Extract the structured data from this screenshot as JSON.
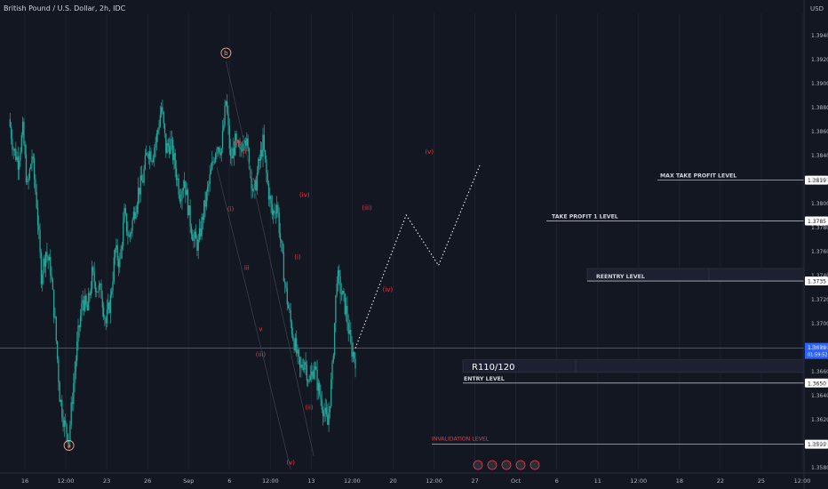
{
  "header": {
    "symbol_title": "British Pound / U.S. Dollar, 2h, IDC"
  },
  "chart_data": {
    "type": "candlestick",
    "currency": "USD",
    "y_ticks": [
      "1.3940",
      "1.3920",
      "1.3900",
      "1.3880",
      "1.3860",
      "1.3840",
      "1.3820",
      "1.3800",
      "1.3780",
      "1.3760",
      "1.3740",
      "1.3720",
      "1.3700",
      "1.3680",
      "1.3660",
      "1.3640",
      "1.3620",
      "1.3600",
      "1.3580"
    ],
    "ylim": [
      1.3578,
      1.3958
    ],
    "x_ticks": [
      "16",
      "12:00",
      "23",
      "26",
      "Sep",
      "6",
      "12:00",
      "13",
      "12:00",
      "20",
      "12:00",
      "27",
      "Oct",
      "6",
      "11",
      "12:00",
      "18",
      "22",
      "25",
      "12:00"
    ],
    "price_path": [
      [
        0,
        1.387
      ],
      [
        1,
        1.3845
      ],
      [
        2,
        1.3835
      ],
      [
        3,
        1.386
      ],
      [
        4,
        1.3812
      ],
      [
        5,
        1.384
      ],
      [
        6,
        1.38
      ],
      [
        7,
        1.374
      ],
      [
        8,
        1.376
      ],
      [
        9,
        1.3745
      ],
      [
        10,
        1.37
      ],
      [
        11,
        1.364
      ],
      [
        12,
        1.3615
      ],
      [
        13,
        1.3605
      ],
      [
        14,
        1.365
      ],
      [
        15,
        1.369
      ],
      [
        16,
        1.372
      ],
      [
        17,
        1.371
      ],
      [
        18,
        1.374
      ],
      [
        19,
        1.373
      ],
      [
        20,
        1.3725
      ],
      [
        21,
        1.37
      ],
      [
        22,
        1.372
      ],
      [
        23,
        1.376
      ],
      [
        24,
        1.375
      ],
      [
        25,
        1.379
      ],
      [
        26,
        1.377
      ],
      [
        27,
        1.379
      ],
      [
        28,
        1.381
      ],
      [
        29,
        1.382
      ],
      [
        30,
        1.3845
      ],
      [
        31,
        1.384
      ],
      [
        32,
        1.3855
      ],
      [
        33,
        1.388
      ],
      [
        34,
        1.3845
      ],
      [
        35,
        1.385
      ],
      [
        36,
        1.383
      ],
      [
        37,
        1.3808
      ],
      [
        38,
        1.382
      ],
      [
        39,
        1.379
      ],
      [
        40,
        1.377
      ],
      [
        41,
        1.3765
      ],
      [
        42,
        1.379
      ],
      [
        43,
        1.381
      ],
      [
        44,
        1.383
      ],
      [
        45,
        1.385
      ],
      [
        46,
        1.3845
      ],
      [
        47,
        1.3885
      ],
      [
        48,
        1.3835
      ],
      [
        49,
        1.385
      ],
      [
        50,
        1.384
      ],
      [
        51,
        1.386
      ],
      [
        52,
        1.3835
      ],
      [
        53,
        1.3805
      ],
      [
        54,
        1.383
      ],
      [
        55,
        1.385
      ],
      [
        56,
        1.3815
      ],
      [
        57,
        1.379
      ],
      [
        58,
        1.38
      ],
      [
        59,
        1.376
      ],
      [
        60,
        1.3725
      ],
      [
        61,
        1.37
      ],
      [
        62,
        1.368
      ],
      [
        63,
        1.366
      ],
      [
        64,
        1.367
      ],
      [
        65,
        1.365
      ],
      [
        66,
        1.3665
      ],
      [
        67,
        1.3645
      ],
      [
        68,
        1.363
      ],
      [
        69,
        1.3615
      ],
      [
        70,
        1.366
      ],
      [
        71,
        1.374
      ],
      [
        72,
        1.3725
      ],
      [
        73,
        1.371
      ],
      [
        74,
        1.368
      ],
      [
        75,
        1.367
      ]
    ],
    "current_price": "1.3679",
    "countdown": "01:59:52",
    "price_labels": [
      {
        "value": 1.3819,
        "text": "1.3819"
      },
      {
        "value": 1.3785,
        "text": "1.3785"
      },
      {
        "value": 1.3735,
        "text": "1.3735"
      },
      {
        "value": 1.365,
        "text": "1.3650"
      },
      {
        "value": 1.3599,
        "text": "1.3599"
      }
    ],
    "levels": [
      {
        "name": "max-take-profit",
        "text": "MAX TAKE PROFIT LEVEL",
        "value": 1.3819
      },
      {
        "name": "take-profit-1",
        "text": "TAKE PROFIT 1 LEVEL",
        "value": 1.3785
      },
      {
        "name": "reentry",
        "text": "REENTRY LEVEL",
        "value": 1.3735
      },
      {
        "name": "entry",
        "text": "ENTRY LEVEL",
        "value": 1.365
      },
      {
        "name": "invalidation",
        "text": "INVALIDATION LEVEL",
        "value": 1.3599
      }
    ],
    "rr_label": "R110/120",
    "projection": [
      [
        75,
        1.3679
      ],
      [
        86,
        1.379
      ],
      [
        93,
        1.3748
      ],
      [
        102,
        1.3832
      ]
    ],
    "wave_labels": [
      {
        "text": "b",
        "i": 47,
        "v": 1.3925,
        "circled": true,
        "color": "#f0a58a"
      },
      {
        "text": "a",
        "i": 13,
        "v": 1.3598,
        "circled": true,
        "color": "#f0a58a"
      },
      {
        "text": "(ii)",
        "i": 49.5,
        "v": 1.385,
        "circled": false,
        "color": "#f23645"
      },
      {
        "text": "ii",
        "i": 51,
        "v": 1.3843,
        "circled": false,
        "color": "#f23645"
      },
      {
        "text": "iv",
        "i": 53,
        "v": 1.382,
        "circled": false,
        "color": "#f23645"
      },
      {
        "text": "(i)",
        "i": 48,
        "v": 1.3795,
        "circled": false,
        "color": "#f23645"
      },
      {
        "text": "iii",
        "i": 51.5,
        "v": 1.3746,
        "circled": false,
        "color": "#f23645"
      },
      {
        "text": "v",
        "i": 54.5,
        "v": 1.3695,
        "circled": false,
        "color": "#f23645"
      },
      {
        "text": "(iii)",
        "i": 54.5,
        "v": 1.3674,
        "circled": false,
        "color": "#f23645"
      },
      {
        "text": "(iv)",
        "i": 64,
        "v": 1.3807,
        "circled": false,
        "color": "#f23645"
      },
      {
        "text": "(i)",
        "i": 62.5,
        "v": 1.3755,
        "circled": false,
        "color": "#f23645"
      },
      {
        "text": "(ii)",
        "i": 65,
        "v": 1.363,
        "circled": false,
        "color": "#f23645"
      },
      {
        "text": "(v)",
        "i": 61,
        "v": 1.3584,
        "circled": false,
        "color": "#f23645"
      },
      {
        "text": "(iii)",
        "i": 77.5,
        "v": 1.3796,
        "circled": false,
        "color": "#f23645"
      },
      {
        "text": "(iv)",
        "i": 82,
        "v": 1.3728,
        "circled": false,
        "color": "#f23645"
      },
      {
        "text": "(v)",
        "i": 91,
        "v": 1.3843,
        "circled": false,
        "color": "#f23645"
      }
    ],
    "colors": {
      "background": "#131722",
      "candle": "#26a69a",
      "wave_label": "#f23645",
      "abc_label": "#f0a58a",
      "current_price": "#2962ff",
      "level_line": "#b2b5be"
    }
  }
}
